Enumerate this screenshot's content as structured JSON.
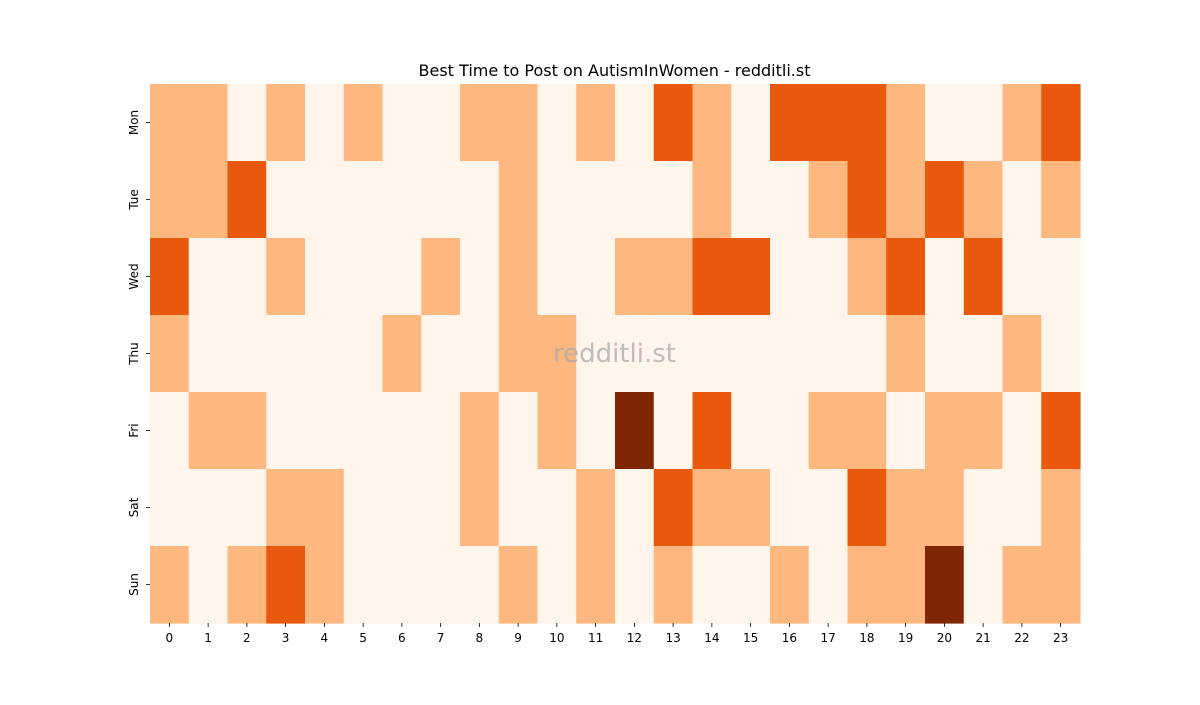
{
  "chart_data": {
    "type": "heatmap",
    "title": "Best Time to Post on AutismInWomen - redditli.st",
    "xlabel": "",
    "ylabel": "",
    "x_categories": [
      "0",
      "1",
      "2",
      "3",
      "4",
      "5",
      "6",
      "7",
      "8",
      "9",
      "10",
      "11",
      "12",
      "13",
      "14",
      "15",
      "16",
      "17",
      "18",
      "19",
      "20",
      "21",
      "22",
      "23"
    ],
    "y_categories": [
      "Mon",
      "Tue",
      "Wed",
      "Thu",
      "Fri",
      "Sat",
      "Sun"
    ],
    "value_scale": {
      "min": 0,
      "max": 3
    },
    "values": [
      [
        1,
        1,
        0,
        1,
        0,
        1,
        0,
        0,
        1,
        1,
        0,
        1,
        0,
        2,
        1,
        0,
        2,
        2,
        2,
        1,
        0,
        0,
        1,
        2
      ],
      [
        1,
        1,
        2,
        0,
        0,
        0,
        0,
        0,
        0,
        1,
        0,
        0,
        0,
        0,
        1,
        0,
        0,
        1,
        2,
        1,
        2,
        1,
        0,
        1
      ],
      [
        2,
        0,
        0,
        1,
        0,
        0,
        0,
        1,
        0,
        1,
        0,
        0,
        1,
        1,
        2,
        2,
        0,
        0,
        1,
        2,
        0,
        2,
        0,
        0
      ],
      [
        1,
        0,
        0,
        0,
        0,
        0,
        1,
        0,
        0,
        1,
        1,
        0,
        0,
        0,
        0,
        0,
        0,
        0,
        0,
        1,
        0,
        0,
        1,
        0
      ],
      [
        0,
        1,
        1,
        0,
        0,
        0,
        0,
        0,
        1,
        0,
        1,
        0,
        3,
        0,
        2,
        0,
        0,
        1,
        1,
        0,
        1,
        1,
        0,
        2
      ],
      [
        0,
        0,
        0,
        1,
        1,
        0,
        0,
        0,
        1,
        0,
        0,
        1,
        0,
        2,
        1,
        1,
        0,
        0,
        2,
        1,
        1,
        0,
        0,
        1
      ],
      [
        1,
        0,
        1,
        2,
        1,
        0,
        0,
        0,
        0,
        1,
        0,
        1,
        0,
        1,
        0,
        0,
        1,
        0,
        1,
        1,
        3,
        0,
        1,
        1
      ]
    ],
    "colormap": [
      "#fff5eb",
      "#fdb77f",
      "#e8590d",
      "#7f2704"
    ],
    "grid": false,
    "legend": "none"
  },
  "watermark": "redditli.st"
}
